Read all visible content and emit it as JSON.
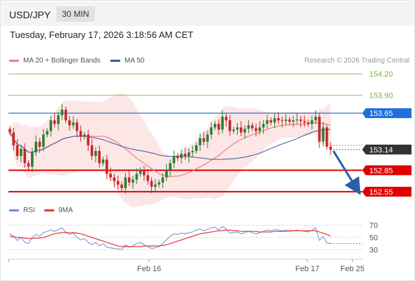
{
  "header": {
    "symbol": "USD/JPY",
    "timeframe": "30 MIN",
    "datetime": "Tuesday, February 17, 2026 3:18:56 AM CET"
  },
  "legend": {
    "ma20": "MA 20 + Bollinger Bands",
    "ma50": "MA 50",
    "credit": "Research © 2026 Trading Central"
  },
  "price_levels": {
    "r3": "154.20",
    "r2": "153.90",
    "r1": "153.65",
    "current": "153.14",
    "s1": "152.85",
    "s2": "152.55"
  },
  "rsi_legend": {
    "rsi": "RSI",
    "ma": "9MA"
  },
  "rsi_levels": [
    "70",
    "50",
    "30"
  ],
  "x_axis": [
    "Feb 16",
    "Feb 17",
    "Feb 25"
  ],
  "colors": {
    "up_candle": "#2e7d32",
    "down_candle": "#c62828",
    "support": "#e00000",
    "resistance_green": "#8bc34a",
    "pivot_blue": "#1565c0",
    "badge_blue": "#1e6fd9",
    "ma20": "#ef8080",
    "ma50": "#3c5a9a",
    "band": "#fbdede",
    "rsi": "#6b8fd8",
    "rsi_ma": "#e53935"
  },
  "chart_data": {
    "type": "candlestick",
    "symbol": "USD/JPY",
    "timeframe": "30 MIN",
    "ylim": [
      152.5,
      154.3
    ],
    "levels": [
      154.2,
      153.9,
      153.65,
      153.14,
      152.85,
      152.55
    ],
    "close": [
      153.38,
      153.2,
      153.05,
      153.15,
      152.95,
      152.9,
      153.1,
      153.25,
      153.18,
      153.35,
      153.4,
      153.55,
      153.5,
      153.62,
      153.7,
      153.55,
      153.48,
      153.52,
      153.4,
      153.32,
      153.35,
      153.2,
      153.05,
      153.12,
      152.95,
      153.0,
      152.8,
      152.75,
      152.7,
      152.65,
      152.6,
      152.75,
      152.68,
      152.72,
      152.8,
      152.85,
      152.78,
      152.7,
      152.62,
      152.65,
      152.68,
      152.75,
      152.85,
      152.95,
      153.05,
      153.02,
      153.08,
      153.05,
      153.1,
      153.12,
      153.2,
      153.3,
      153.25,
      153.35,
      153.45,
      153.5,
      153.42,
      153.6,
      153.55,
      153.4,
      153.42,
      153.45,
      153.38,
      153.43,
      153.48,
      153.44,
      153.4,
      153.45,
      153.5,
      153.55,
      153.52,
      153.58,
      153.55,
      153.54,
      153.56,
      153.53,
      153.55,
      153.56,
      153.54,
      153.52,
      153.5,
      153.55,
      153.6,
      153.25,
      153.45,
      153.18,
      153.14
    ],
    "rsi": {
      "levels": [
        30,
        50,
        70
      ],
      "values": [
        56,
        52,
        45,
        50,
        42,
        40,
        50,
        55,
        52,
        58,
        60,
        62,
        60,
        63,
        66,
        58,
        55,
        57,
        50,
        46,
        48,
        42,
        38,
        42,
        36,
        40,
        34,
        33,
        32,
        31,
        30,
        38,
        34,
        36,
        40,
        42,
        38,
        35,
        32,
        33,
        35,
        40,
        46,
        52,
        56,
        55,
        57,
        56,
        58,
        59,
        62,
        64,
        61,
        63,
        66,
        67,
        62,
        68,
        64,
        57,
        58,
        59,
        56,
        58,
        60,
        58,
        56,
        58,
        60,
        62,
        61,
        63,
        62,
        61,
        62,
        60,
        61,
        62,
        61,
        60,
        59,
        62,
        66,
        45,
        52,
        41,
        40
      ],
      "ma": [
        52,
        51,
        50,
        50,
        49,
        48,
        48,
        49,
        49,
        50,
        52,
        54,
        56,
        57,
        58,
        58,
        58,
        58,
        57,
        56,
        54,
        52,
        50,
        48,
        46,
        44,
        42,
        40,
        38,
        36,
        35,
        35,
        35,
        35,
        35,
        35,
        36,
        36,
        36,
        36,
        36,
        37,
        38,
        40,
        42,
        44,
        46,
        48,
        50,
        52,
        54,
        56,
        57,
        58,
        59,
        60,
        61,
        61,
        62,
        62,
        61,
        61,
        60,
        60,
        60,
        60,
        60,
        59,
        59,
        59,
        59,
        60,
        60,
        60,
        60,
        61,
        61,
        61,
        61,
        61,
        61,
        61,
        61,
        59,
        57,
        55,
        52
      ]
    },
    "x_ticks": [
      "Feb 16",
      "Feb 17",
      "Feb 25"
    ]
  }
}
